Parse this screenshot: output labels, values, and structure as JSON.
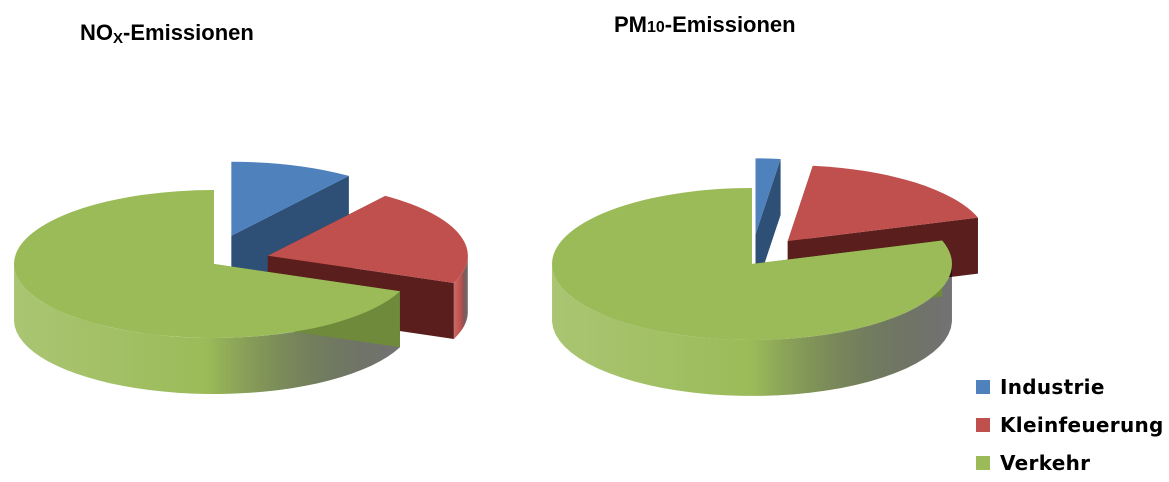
{
  "chart_data": [
    {
      "type": "pie",
      "title_main": "NO",
      "title_sub": "X",
      "title_rest": "-Emissionen",
      "slices": [
        {
          "name": "Industrie",
          "value": 10
        },
        {
          "name": "Kleinfeuerung",
          "value": 21
        },
        {
          "name": "Verkehr",
          "value": 69
        }
      ]
    },
    {
      "type": "pie",
      "title_main": "PM",
      "title_sub": "10",
      "title_rest": "-Emissionen",
      "slices": [
        {
          "name": "Industrie",
          "value": 2
        },
        {
          "name": "Kleinfeuerung",
          "value": 18
        },
        {
          "name": "Verkehr",
          "value": 80
        }
      ]
    }
  ],
  "legend": {
    "placement": "bottom-right",
    "items": [
      {
        "label": "Industrie",
        "color": "#4F81BD"
      },
      {
        "label": "Kleinfeuerung",
        "color": "#C0504D"
      },
      {
        "label": "Verkehr",
        "color": "#9BBB59"
      }
    ]
  },
  "colors": {
    "Industrie": {
      "top": "#4F81BD",
      "side": "#2E4F76"
    },
    "Kleinfeuerung": {
      "top": "#C0504D",
      "side": "#5A1E1C"
    },
    "Verkehr": {
      "top": "#9BBB59",
      "side": "#6E8A3A"
    }
  }
}
